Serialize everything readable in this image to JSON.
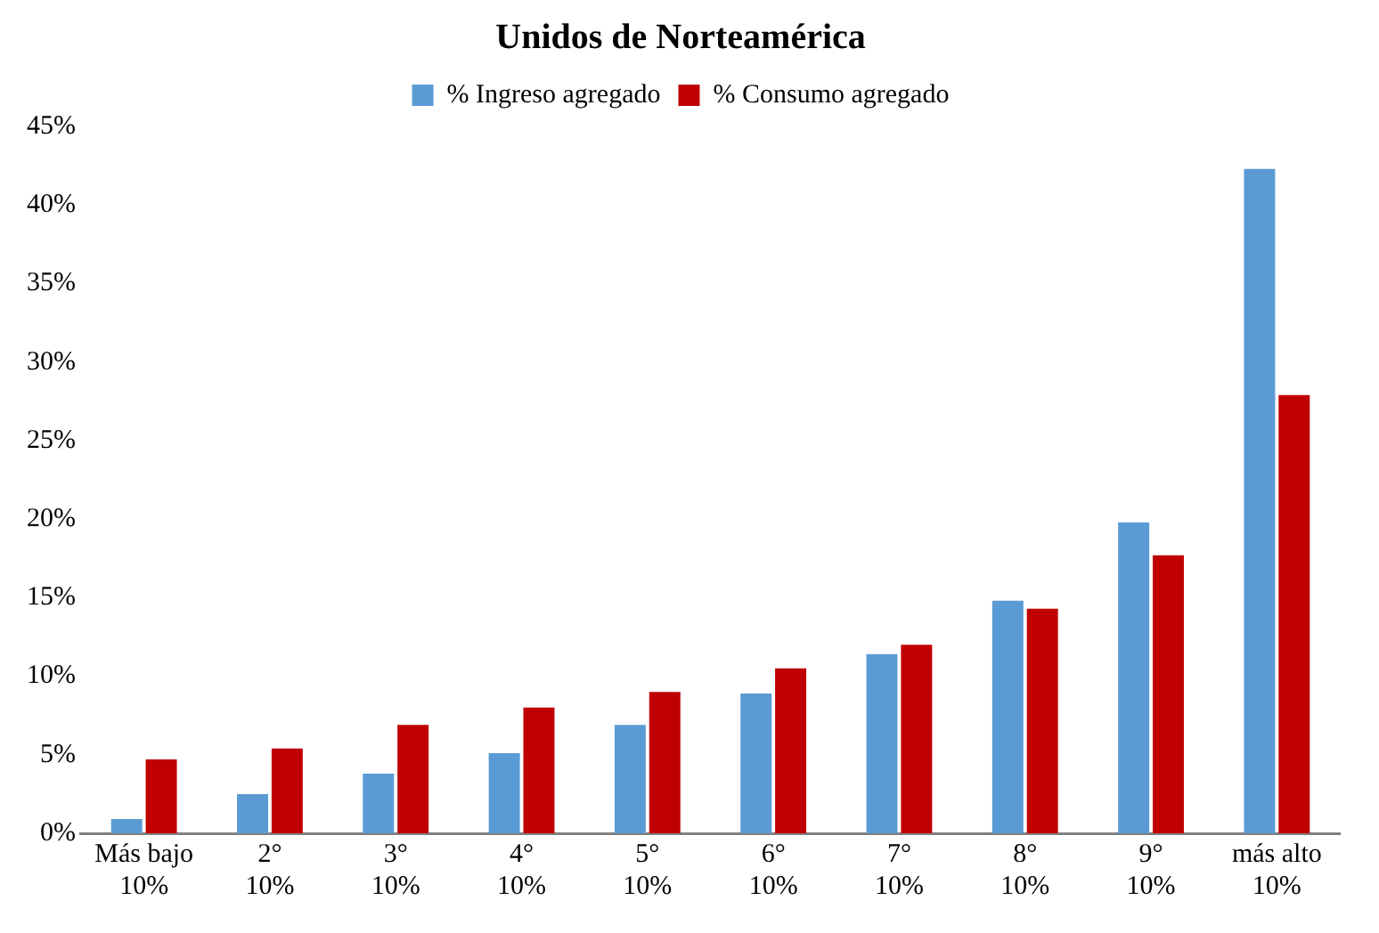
{
  "chart_data": {
    "type": "bar",
    "title": "Unidos de Norteamérica",
    "categories": [
      "Más bajo\n10%",
      "2°\n10%",
      "3°\n10%",
      "4°\n10%",
      "5°\n10%",
      "6°\n10%",
      "7°\n10%",
      "8°\n10%",
      "9°\n10%",
      "más alto\n10%"
    ],
    "series": [
      {
        "name": "% Ingreso agregado",
        "color": "#5b9bd5",
        "values": [
          0.9,
          2.5,
          3.8,
          5.1,
          6.9,
          8.9,
          11.4,
          14.8,
          19.8,
          42.3
        ]
      },
      {
        "name": "% Consumo agregado",
        "color": "#c00000",
        "values": [
          4.7,
          5.4,
          6.9,
          8.0,
          9.0,
          10.5,
          12.0,
          14.3,
          17.7,
          27.9
        ]
      }
    ],
    "ylim": [
      0,
      45
    ],
    "yticks": [
      {
        "value": 0,
        "label": "0%"
      },
      {
        "value": 5,
        "label": "5%"
      },
      {
        "value": 10,
        "label": "10%"
      },
      {
        "value": 15,
        "label": "15%"
      },
      {
        "value": 20,
        "label": "20%"
      },
      {
        "value": 25,
        "label": "25%"
      },
      {
        "value": 30,
        "label": "30%"
      },
      {
        "value": 35,
        "label": "35%"
      },
      {
        "value": 40,
        "label": "40%"
      },
      {
        "value": 45,
        "label": "45%"
      }
    ],
    "grid": false,
    "legend": "top"
  }
}
